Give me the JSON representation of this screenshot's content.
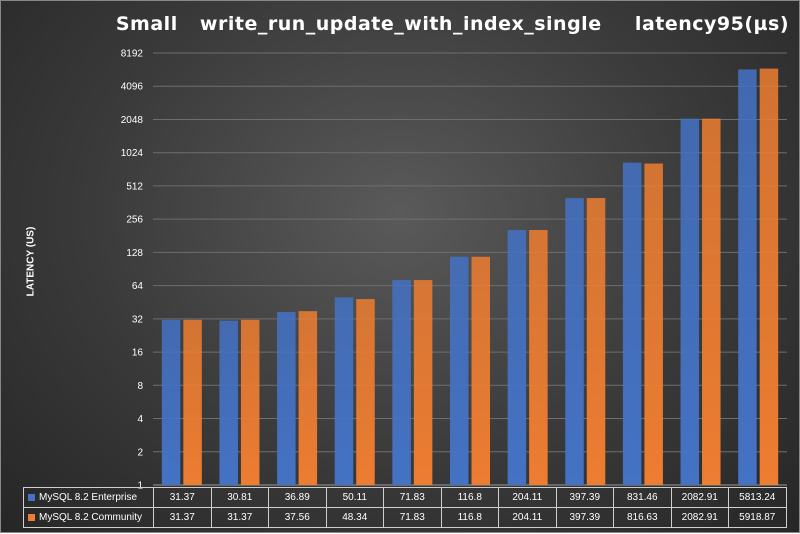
{
  "chart_data": {
    "type": "bar",
    "title": "Small  write_run_update_with_index_single   latency95(µs)",
    "ylabel": "LATENCY (US)",
    "xlabel": "",
    "y_scale": "log2",
    "ylim": [
      1,
      8192
    ],
    "y_ticks": [
      "1",
      "2",
      "4",
      "8",
      "16",
      "32",
      "64",
      "128",
      "256",
      "512",
      "1024",
      "2048",
      "4096",
      "8192"
    ],
    "categories": [
      "",
      "",
      "",
      "",
      "",
      "",
      "",
      "",
      "",
      "",
      ""
    ],
    "grid": true,
    "legend": "data-table",
    "series": [
      {
        "name": "MySQL 8.2 Enterprise",
        "color": "#4472C4",
        "values": [
          31.37,
          30.81,
          36.89,
          50.11,
          71.83,
          116.8,
          204.11,
          397.39,
          831.46,
          2082.91,
          5813.24
        ],
        "labels": [
          "31.37",
          "30.81",
          "36.89",
          "50.11",
          "71.83",
          "116.8",
          "204.11",
          "397.39",
          "831.46",
          "2082.91",
          "5813.24"
        ]
      },
      {
        "name": "MySQL 8.2 Community",
        "color": "#ED7D31",
        "values": [
          31.37,
          31.37,
          37.56,
          48.34,
          71.83,
          116.8,
          204.11,
          397.39,
          816.63,
          2082.91,
          5918.87
        ],
        "labels": [
          "31.37",
          "31.37",
          "37.56",
          "48.34",
          "71.83",
          "116.8",
          "204.11",
          "397.39",
          "816.63",
          "2082.91",
          "5918.87"
        ]
      }
    ]
  }
}
